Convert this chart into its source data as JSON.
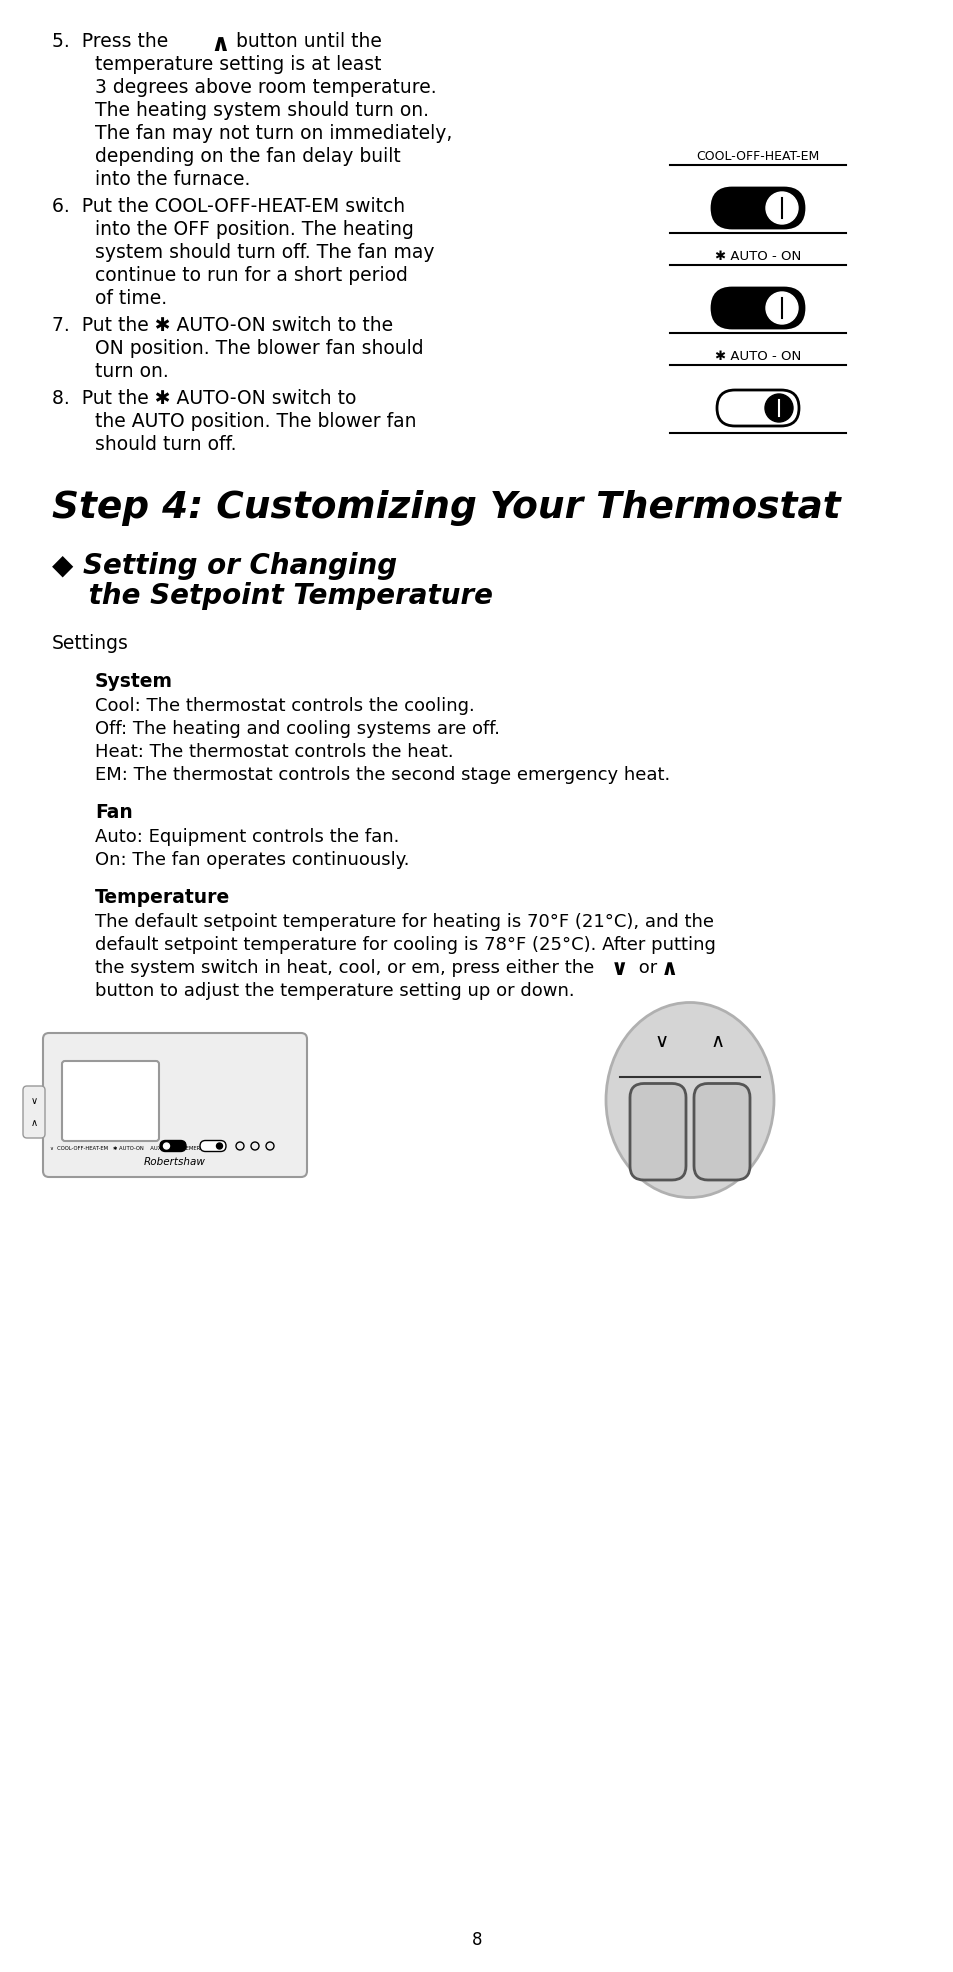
{
  "bg_color": "#ffffff",
  "text_color": "#000000",
  "page_number": "8",
  "item5_lines": [
    "5.  Press the ∧ button until the",
    "    temperature setting is at least",
    "    3 degrees above room temperature.",
    "    The heating system should turn on.",
    "    The fan may not turn on immediately,",
    "    depending on the fan delay built",
    "    into the furnace."
  ],
  "item6_lines": [
    "6.  Put the COOL-OFF-HEAT-EM switch",
    "    into the OFF position. The heating",
    "    system should turn off. The fan may",
    "    continue to run for a short period",
    "    of time."
  ],
  "item7_lines": [
    "7.  Put the ✱ AUTO-ON switch to the",
    "    ON position. The blower fan should",
    "    turn on."
  ],
  "item8_lines": [
    "8.  Put the ✱ AUTO-ON switch to",
    "    the AUTO position. The blower fan",
    "    should turn off."
  ],
  "sw1_label": "COOL-OFF-HEAT-EM",
  "sw2_label": "✱ AUTO - ON",
  "sw3_label": "✱ AUTO - ON",
  "step4_title": "Step 4: Customizing Your Thermostat",
  "section_diamond": "◆",
  "section_line1": " Setting or Changing",
  "section_line2": " the Setpoint Temperature",
  "settings_label": "Settings",
  "system_heading": "System",
  "system_lines": [
    "Cool: The thermostat controls the cooling.",
    "Off: The heating and cooling systems are off.",
    "Heat: The thermostat controls the heat.",
    "EM: The thermostat controls the second stage emergency heat."
  ],
  "fan_heading": "Fan",
  "fan_lines": [
    "Auto: Equipment controls the fan.",
    "On: The fan operates continuously."
  ],
  "temp_heading": "Temperature",
  "temp_line1": "The default setpoint temperature for heating is 70°F (21°C), and the",
  "temp_line2": "default setpoint temperature for cooling is 78°F (25°C). After putting",
  "temp_line3a": "the system switch in heat, cool, or em, press either the ",
  "temp_line3b": "∨",
  "temp_line3c": " or ",
  "temp_line3d": "∧",
  "temp_line4": "button to adjust the temperature setting up or down."
}
